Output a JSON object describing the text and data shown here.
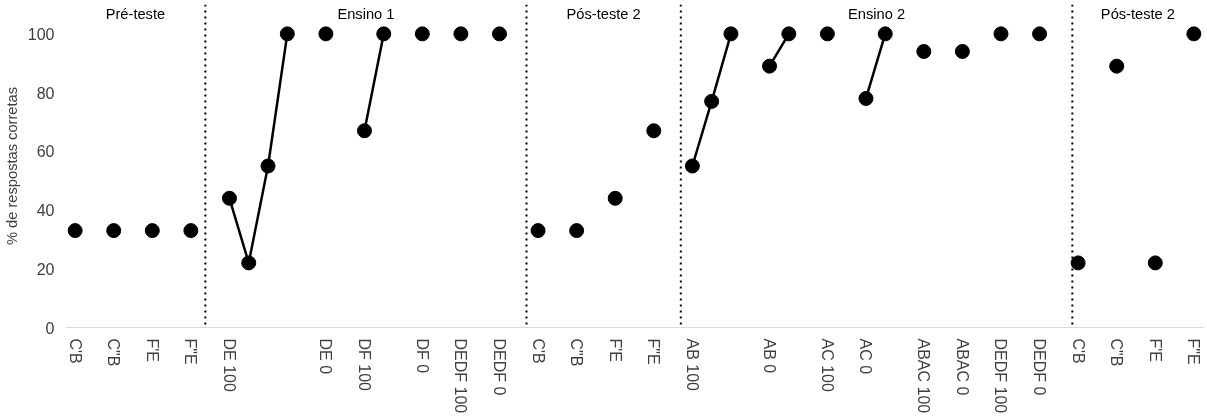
{
  "chart_data": {
    "type": "line",
    "ylabel": "% de respostas corretas",
    "annotations": [
      "Pré-teste",
      "Ensino 1",
      "Pós-teste 2",
      "Ensino 2",
      "Pós-teste 2"
    ],
    "categories": [
      "C'B",
      null,
      "C\"B",
      null,
      "F'E",
      null,
      "F\"E",
      null,
      "DE 100",
      null,
      null,
      null,
      null,
      "DE 0",
      null,
      "DF 100",
      null,
      null,
      "DF 0",
      null,
      "DEDF 100",
      null,
      "DEDF 0",
      null,
      "C'B",
      null,
      "C\"B",
      null,
      "F'E",
      null,
      "F\"E",
      null,
      "AB 100",
      null,
      null,
      null,
      "AB 0",
      null,
      null,
      "AC 100",
      null,
      "AC 0",
      null,
      null,
      "ABAC 100",
      null,
      "ABAC 0",
      null,
      "DEDF 100",
      null,
      "DEDF 0",
      null,
      "C'B",
      null,
      "C\"B",
      null,
      "F'E",
      null,
      "F\"E"
    ],
    "series": [
      {
        "color": "#000000",
        "values": [
          33,
          null,
          33,
          null,
          33,
          null,
          33,
          null,
          44,
          22,
          55,
          100,
          null,
          100,
          null,
          67,
          100,
          null,
          100,
          null,
          100,
          null,
          100,
          null,
          33,
          null,
          33,
          null,
          44,
          null,
          67,
          null,
          55,
          77,
          100,
          null,
          89,
          100,
          null,
          100,
          null,
          78,
          100,
          null,
          94,
          null,
          94,
          null,
          100,
          null,
          100,
          null,
          22,
          null,
          89,
          null,
          22,
          null,
          100
        ]
      }
    ],
    "ylim": [
      0,
      110
    ],
    "yticks": [
      0,
      20,
      40,
      60,
      80,
      100
    ],
    "marker": "circle",
    "line_style": "solid",
    "grid": false
  }
}
